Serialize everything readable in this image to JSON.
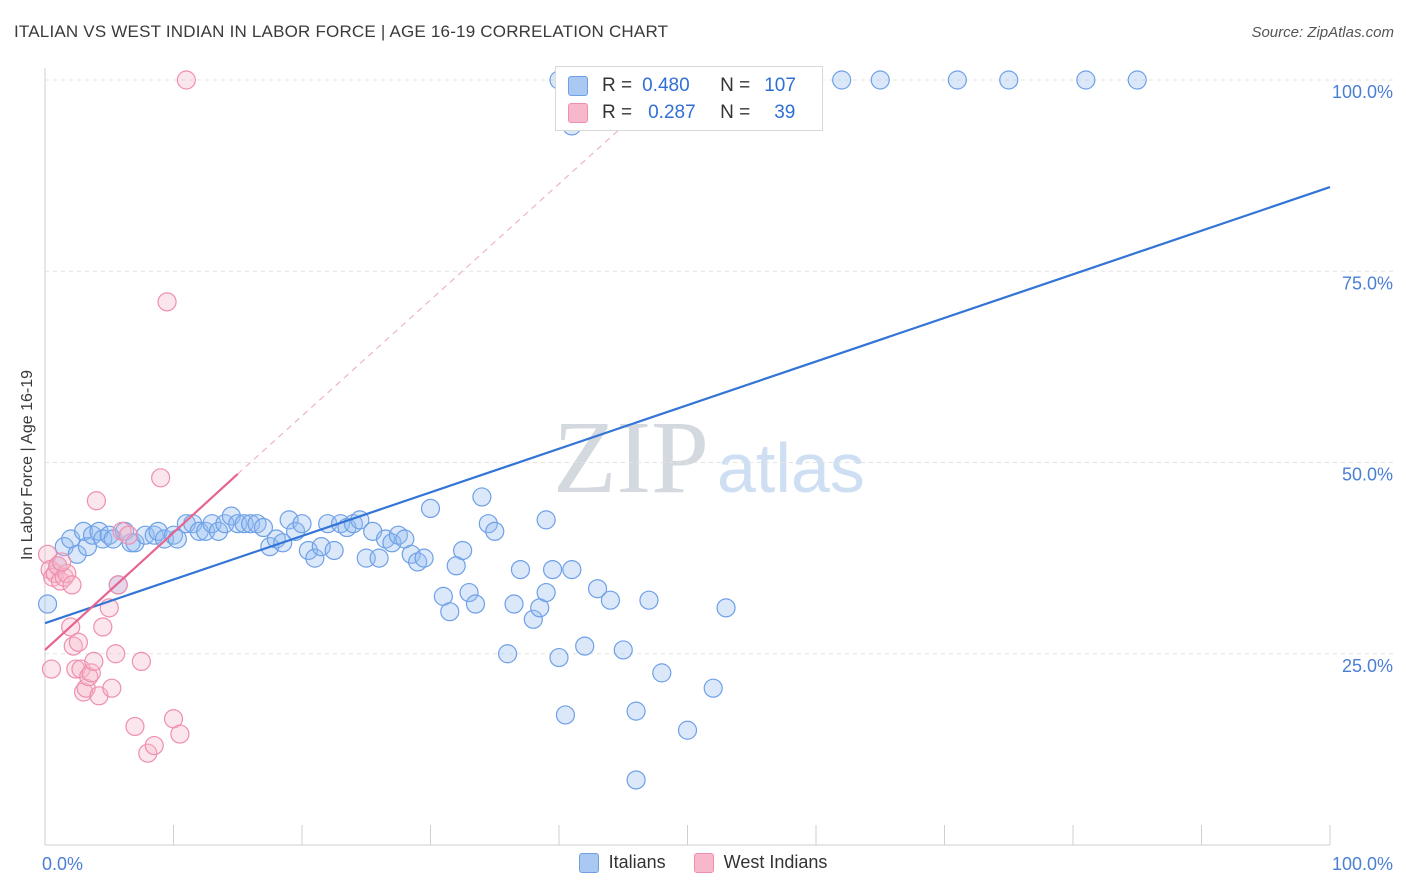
{
  "title": "ITALIAN VS WEST INDIAN IN LABOR FORCE | AGE 16-19 CORRELATION CHART",
  "source": "Source: ZipAtlas.com",
  "watermark": {
    "zip": "ZIP",
    "atlas": "atlas"
  },
  "legend": {
    "r_label": "R =",
    "n_label": "N =",
    "rows": [
      {
        "r": "0.480",
        "n": "107",
        "color": "#a9c8f2",
        "border": "#6fa0e6"
      },
      {
        "r": "0.287",
        "n": "39",
        "color": "#f7b8cb",
        "border": "#ef8fad"
      }
    ]
  },
  "chart_data": {
    "type": "scatter",
    "title": "ITALIAN VS WEST INDIAN IN LABOR FORCE | AGE 16-19 CORRELATION CHART",
    "xlabel": "",
    "ylabel": "In Labor Force | Age 16-19",
    "xlim": [
      0,
      100
    ],
    "ylim": [
      0,
      100
    ],
    "x_tick_labels": [
      "0.0%",
      "100.0%"
    ],
    "y_tick_labels": [
      "25.0%",
      "50.0%",
      "75.0%",
      "100.0%"
    ],
    "y_ticks": [
      25,
      50,
      75,
      100
    ],
    "series": [
      {
        "name": "Italians",
        "color": "#6fa0e6",
        "fill": "rgba(150,190,240,0.35)",
        "R": 0.48,
        "N": 107,
        "trend": {
          "x": [
            0,
            100
          ],
          "y": [
            29,
            86
          ],
          "style": "solid",
          "color": "#3375d6"
        },
        "points": [
          [
            0.2,
            31.5
          ],
          [
            1,
            36.5
          ],
          [
            1.5,
            39
          ],
          [
            2,
            40
          ],
          [
            2.5,
            38
          ],
          [
            3,
            41
          ],
          [
            3.3,
            39
          ],
          [
            3.7,
            40.5
          ],
          [
            4.2,
            41
          ],
          [
            4.5,
            40
          ],
          [
            5,
            40.5
          ],
          [
            5.3,
            40
          ],
          [
            5.7,
            34
          ],
          [
            6.2,
            41
          ],
          [
            6.7,
            39.5
          ],
          [
            7,
            39.5
          ],
          [
            7.8,
            40.5
          ],
          [
            8.5,
            40.5
          ],
          [
            8.8,
            41
          ],
          [
            9.3,
            40
          ],
          [
            10,
            40.5
          ],
          [
            10.3,
            40
          ],
          [
            11,
            42
          ],
          [
            11.5,
            42
          ],
          [
            12,
            41
          ],
          [
            12.5,
            41
          ],
          [
            13,
            42
          ],
          [
            13.5,
            41
          ],
          [
            14,
            42
          ],
          [
            14.5,
            43
          ],
          [
            15,
            42
          ],
          [
            15.5,
            42
          ],
          [
            16,
            42
          ],
          [
            16.5,
            42
          ],
          [
            17,
            41.5
          ],
          [
            17.5,
            39
          ],
          [
            18,
            40
          ],
          [
            18.5,
            39.5
          ],
          [
            19,
            42.5
          ],
          [
            19.5,
            41
          ],
          [
            20,
            42
          ],
          [
            20.5,
            38.5
          ],
          [
            21,
            37.5
          ],
          [
            21.5,
            39
          ],
          [
            22,
            42
          ],
          [
            22.5,
            38.5
          ],
          [
            23,
            42
          ],
          [
            23.5,
            41.5
          ],
          [
            24,
            42
          ],
          [
            24.5,
            42.5
          ],
          [
            25,
            37.5
          ],
          [
            25.5,
            41
          ],
          [
            26,
            37.5
          ],
          [
            26.5,
            40
          ],
          [
            27,
            39.5
          ],
          [
            27.5,
            40.5
          ],
          [
            28,
            40
          ],
          [
            28.5,
            38
          ],
          [
            29,
            37
          ],
          [
            29.5,
            37.5
          ],
          [
            30,
            44
          ],
          [
            31,
            32.5
          ],
          [
            31.5,
            30.5
          ],
          [
            32,
            36.5
          ],
          [
            32.5,
            38.5
          ],
          [
            33,
            33
          ],
          [
            33.5,
            31.5
          ],
          [
            34,
            45.5
          ],
          [
            34.5,
            42
          ],
          [
            35,
            41
          ],
          [
            36,
            25
          ],
          [
            36.5,
            31.5
          ],
          [
            37,
            36
          ],
          [
            38,
            29.5
          ],
          [
            38.5,
            31
          ],
          [
            39,
            33
          ],
          [
            39,
            42.5
          ],
          [
            39.5,
            36
          ],
          [
            40,
            24.5
          ],
          [
            40.5,
            17
          ],
          [
            41,
            36
          ],
          [
            42,
            26
          ],
          [
            43,
            33.5
          ],
          [
            44,
            32
          ],
          [
            45,
            25.5
          ],
          [
            46,
            17.5
          ],
          [
            46,
            8.5
          ],
          [
            47,
            32
          ],
          [
            48,
            22.5
          ],
          [
            50,
            15
          ],
          [
            52,
            20.5
          ],
          [
            53,
            31
          ],
          [
            41,
            94
          ],
          [
            40,
            100
          ],
          [
            43,
            100
          ],
          [
            45,
            100
          ],
          [
            47,
            100
          ],
          [
            51,
            100
          ],
          [
            53,
            100
          ],
          [
            56,
            100
          ],
          [
            59,
            100
          ],
          [
            62,
            100
          ],
          [
            65,
            100
          ],
          [
            71,
            100
          ],
          [
            75,
            100
          ],
          [
            81,
            100
          ],
          [
            85,
            100
          ]
        ]
      },
      {
        "name": "West Indians",
        "color": "#ef8fad",
        "fill": "rgba(247,184,203,0.35)",
        "R": 0.287,
        "N": 39,
        "trend": {
          "x": [
            0,
            15
          ],
          "y": [
            25.5,
            48.5
          ],
          "style": "solid",
          "color": "#e8638f",
          "dashed_extension": {
            "x": [
              15,
              45
            ],
            "y": [
              48.5,
              94
            ]
          }
        },
        "points": [
          [
            0.2,
            38
          ],
          [
            0.4,
            36
          ],
          [
            0.6,
            35
          ],
          [
            0.8,
            35.5
          ],
          [
            1,
            36.5
          ],
          [
            1.2,
            34.5
          ],
          [
            1.5,
            35
          ],
          [
            1.7,
            35.5
          ],
          [
            2,
            28.5
          ],
          [
            2.2,
            26
          ],
          [
            2.4,
            23
          ],
          [
            2.6,
            26.5
          ],
          [
            2.8,
            23
          ],
          [
            3,
            20
          ],
          [
            3.2,
            20.5
          ],
          [
            3.4,
            22
          ],
          [
            3.6,
            22.5
          ],
          [
            3.8,
            24
          ],
          [
            4,
            45
          ],
          [
            4.2,
            19.5
          ],
          [
            4.5,
            28.5
          ],
          [
            5,
            31
          ],
          [
            5.2,
            20.5
          ],
          [
            5.5,
            25
          ],
          [
            5.7,
            34
          ],
          [
            6,
            41
          ],
          [
            6.5,
            40.5
          ],
          [
            7,
            15.5
          ],
          [
            7.5,
            24
          ],
          [
            8,
            12
          ],
          [
            8.5,
            13
          ],
          [
            9,
            48
          ],
          [
            9.5,
            71
          ],
          [
            10,
            16.5
          ],
          [
            10.5,
            14.5
          ],
          [
            11,
            100
          ],
          [
            1.3,
            37
          ],
          [
            2.1,
            34
          ],
          [
            0.5,
            23
          ]
        ]
      }
    ]
  }
}
